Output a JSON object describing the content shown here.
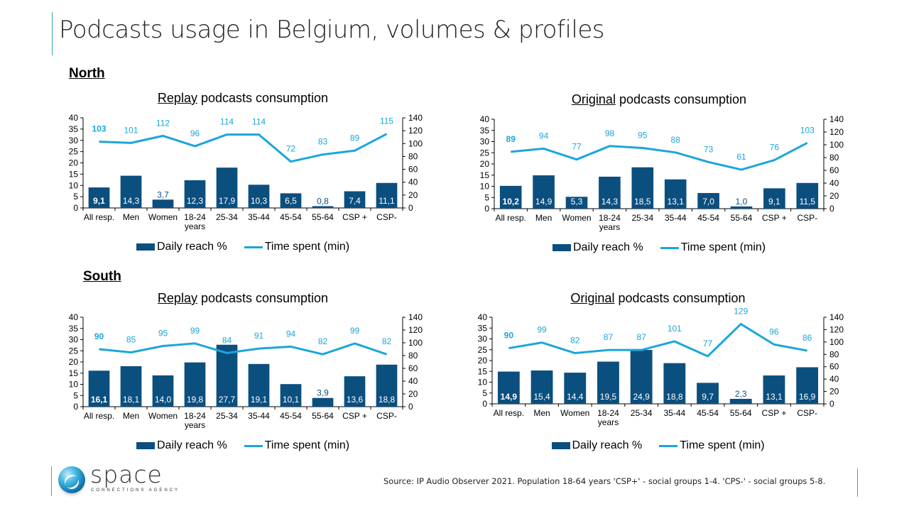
{
  "page": {
    "title": "Podcasts usage in Belgium, volumes & profiles",
    "regions": {
      "north": "North",
      "south": "South"
    },
    "legend": {
      "bar": "Daily reach %",
      "line": "Time spent (min)"
    },
    "source": "Source: IP Audio Observer 2021.  Population 18-64 years 'CSP+' - social groups 1-4. 'CPS-' - social groups 5-8.",
    "logo": {
      "name": "space",
      "tagline": "CONNECTIONS AGENCY"
    },
    "colors": {
      "bar": "#0b4f7f",
      "line": "#1ba6dc",
      "line_label": "#1ba6dc",
      "accent_rule": "#3aa7b0"
    }
  },
  "chart_data": [
    {
      "id": "north-replay",
      "region": "North",
      "type": "bar+line",
      "title_underlined": "Replay",
      "title_rest": " podcasts consumption",
      "categories": [
        "All resp.",
        "Men",
        "Women",
        "18-24\nyears",
        "25-34",
        "35-44",
        "45-54",
        "55-64",
        "CSP +",
        "CSP-"
      ],
      "series": [
        {
          "name": "Daily reach %",
          "type": "bar",
          "axis": "left",
          "values": [
            9.1,
            14.3,
            3.7,
            12.3,
            17.9,
            10.3,
            6.5,
            0.8,
            7.4,
            11.1
          ],
          "labels": [
            "9,1",
            "14,3",
            "3,7",
            "12,3",
            "17,9",
            "10,3",
            "6,5",
            "0,8",
            "7,4",
            "11,1"
          ]
        },
        {
          "name": "Time spent (min)",
          "type": "line",
          "axis": "right",
          "values": [
            103,
            101,
            112,
            96,
            114,
            114,
            72,
            83,
            89,
            115
          ]
        }
      ],
      "y_left": {
        "min": 0,
        "max": 40,
        "ticks": [
          0,
          5,
          10,
          15,
          20,
          25,
          30,
          35,
          40
        ]
      },
      "y_right": {
        "min": 0,
        "max": 140,
        "ticks": [
          0,
          20,
          40,
          60,
          80,
          100,
          120,
          140
        ]
      },
      "legend_position": "bottom",
      "grid": false
    },
    {
      "id": "north-original",
      "region": "North",
      "type": "bar+line",
      "title_underlined": "Original",
      "title_rest": " podcasts consumption",
      "categories": [
        "All resp.",
        "Men",
        "Women",
        "18-24\nyears",
        "25-34",
        "35-44",
        "45-54",
        "55-64",
        "CSP +",
        "CSP-"
      ],
      "series": [
        {
          "name": "Daily reach %",
          "type": "bar",
          "axis": "left",
          "values": [
            10.2,
            14.9,
            5.3,
            14.3,
            18.5,
            13.1,
            7.0,
            1.0,
            9.1,
            11.5
          ],
          "labels": [
            "10,2",
            "14,9",
            "5,3",
            "14,3",
            "18,5",
            "13,1",
            "7,0",
            "1,0",
            "9,1",
            "11,5"
          ]
        },
        {
          "name": "Time spent (min)",
          "type": "line",
          "axis": "right",
          "values": [
            89,
            94,
            77,
            98,
            95,
            88,
            73,
            61,
            76,
            103
          ]
        }
      ],
      "y_left": {
        "min": 0,
        "max": 40,
        "ticks": [
          0,
          5,
          10,
          15,
          20,
          25,
          30,
          35,
          40
        ]
      },
      "y_right": {
        "min": 0,
        "max": 140,
        "ticks": [
          0,
          20,
          40,
          60,
          80,
          100,
          120,
          140
        ]
      },
      "legend_position": "bottom",
      "grid": false
    },
    {
      "id": "south-replay",
      "region": "South",
      "type": "bar+line",
      "title_underlined": "Replay",
      "title_rest": " podcasts consumption",
      "categories": [
        "All resp.",
        "Men",
        "Women",
        "18-24\nyears",
        "25-34",
        "35-44",
        "45-54",
        "55-64",
        "CSP +",
        "CSP-"
      ],
      "series": [
        {
          "name": "Daily reach %",
          "type": "bar",
          "axis": "left",
          "values": [
            16.1,
            18.1,
            14.0,
            19.8,
            27.7,
            19.1,
            10.1,
            3.9,
            13.6,
            18.8
          ],
          "labels": [
            "16,1",
            "18,1",
            "14,0",
            "19,8",
            "27,7",
            "19,1",
            "10,1",
            "3,9",
            "13,6",
            "18,8"
          ]
        },
        {
          "name": "Time spent (min)",
          "type": "line",
          "axis": "right",
          "values": [
            90,
            85,
            95,
            99,
            84,
            91,
            94,
            82,
            99,
            82
          ]
        }
      ],
      "y_left": {
        "min": 0,
        "max": 40,
        "ticks": [
          0,
          5,
          10,
          15,
          20,
          25,
          30,
          35,
          40
        ]
      },
      "y_right": {
        "min": 0,
        "max": 140,
        "ticks": [
          0,
          20,
          40,
          60,
          80,
          100,
          120,
          140
        ]
      },
      "legend_position": "bottom",
      "grid": false
    },
    {
      "id": "south-original",
      "region": "South",
      "type": "bar+line",
      "title_underlined": "Original",
      "title_rest": " podcasts consumption",
      "categories": [
        "All resp.",
        "Men",
        "Women",
        "18-24\nyears",
        "25-34",
        "35-44",
        "45-54",
        "55-64",
        "CSP +",
        "CSP-"
      ],
      "series": [
        {
          "name": "Daily reach %",
          "type": "bar",
          "axis": "left",
          "values": [
            14.9,
            15.4,
            14.4,
            19.5,
            24.9,
            18.8,
            9.7,
            2.3,
            13.1,
            16.9
          ],
          "labels": [
            "14,9",
            "15,4",
            "14,4",
            "19,5",
            "24,9",
            "18,8",
            "9,7",
            "2,3",
            "13,1",
            "16,9"
          ]
        },
        {
          "name": "Time spent (min)",
          "type": "line",
          "axis": "right",
          "values": [
            90,
            99,
            82,
            87,
            87,
            101,
            77,
            129,
            96,
            86
          ]
        }
      ],
      "y_left": {
        "min": 0,
        "max": 40,
        "ticks": [
          0,
          5,
          10,
          15,
          20,
          25,
          30,
          35,
          40
        ]
      },
      "y_right": {
        "min": 0,
        "max": 140,
        "ticks": [
          0,
          20,
          40,
          60,
          80,
          100,
          120,
          140
        ]
      },
      "legend_position": "bottom",
      "grid": false
    }
  ]
}
